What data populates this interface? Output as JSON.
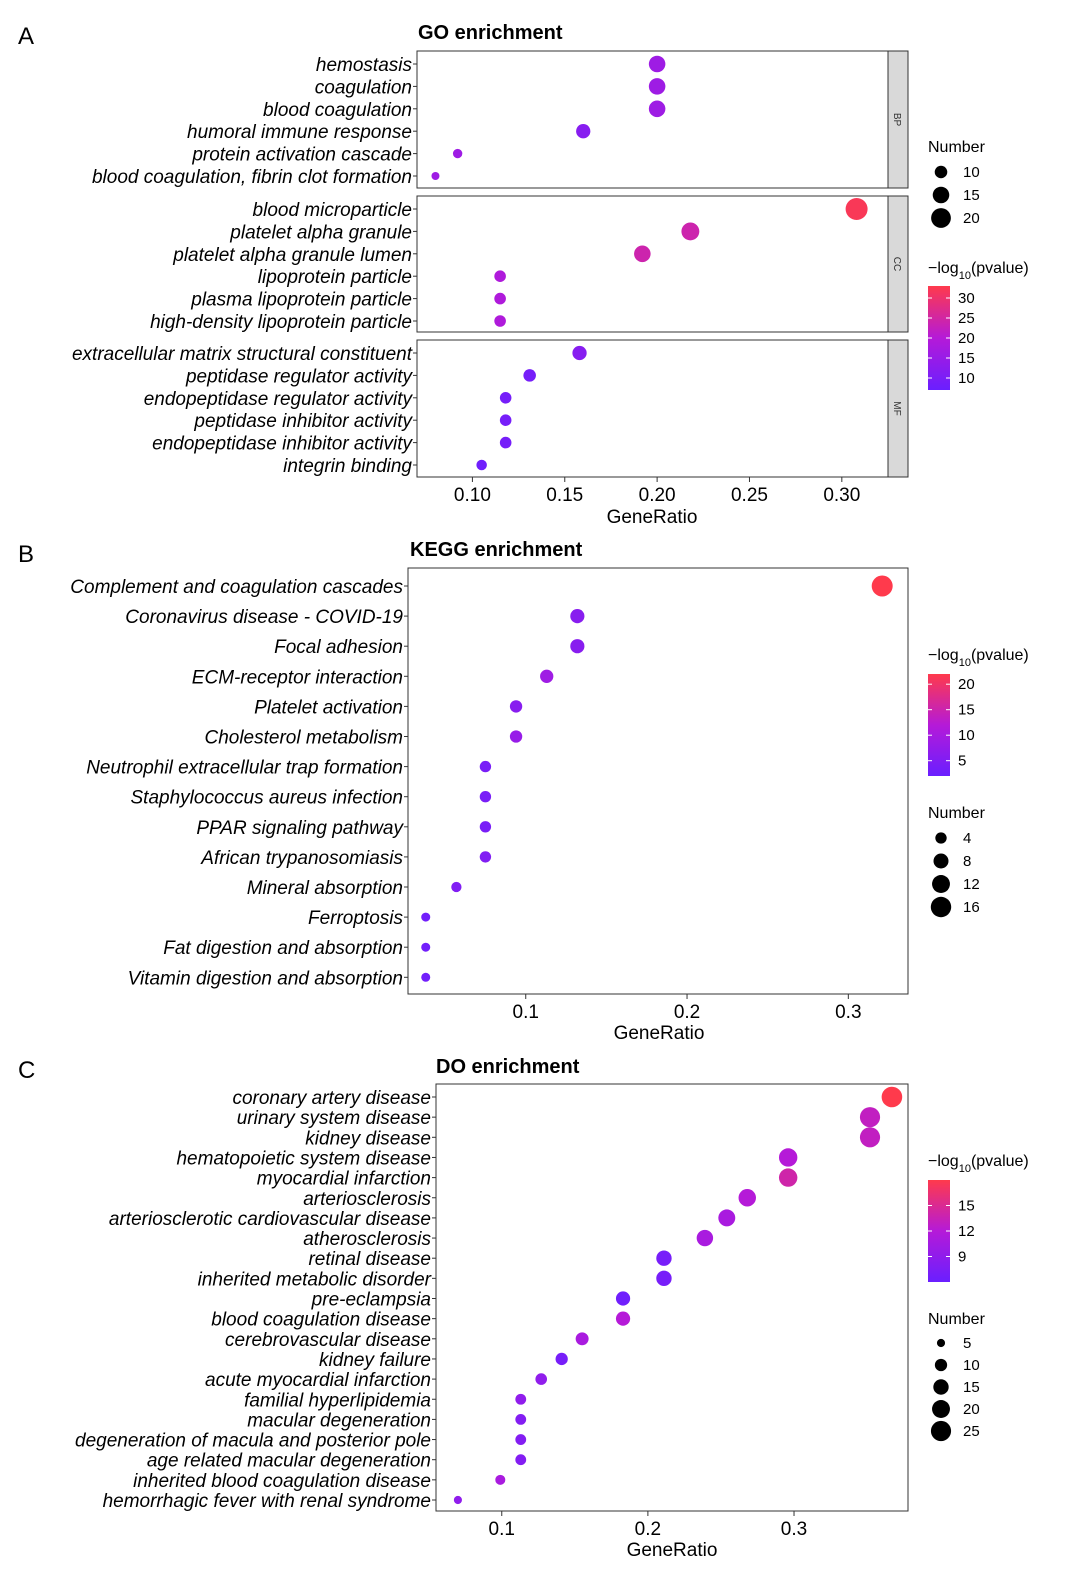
{
  "figure": {
    "panels": [
      {
        "letter": "A",
        "title": "GO enrichment",
        "xlabel": "GeneRatio"
      },
      {
        "letter": "B",
        "title": "KEGG enrichment",
        "xlabel": "GeneRatio"
      },
      {
        "letter": "C",
        "title": "DO enrichment",
        "xlabel": "GeneRatio"
      }
    ]
  },
  "colors": {
    "low": "#6a1fff",
    "mid": "#b51ad8",
    "high": "#ff3a4c"
  },
  "chart_data": [
    {
      "type": "scatter",
      "title": "GO enrichment",
      "xlabel": "GeneRatio",
      "xticks": [
        0.1,
        0.15,
        0.2,
        0.25,
        0.3
      ],
      "xlim": [
        0.07,
        0.325
      ],
      "facets": [
        {
          "name": "BP",
          "terms": [
            {
              "term": "hemostasis",
              "x": 0.2,
              "count": 15,
              "neglog10p": 16
            },
            {
              "term": "coagulation",
              "x": 0.2,
              "count": 15,
              "neglog10p": 16
            },
            {
              "term": "blood coagulation",
              "x": 0.2,
              "count": 15,
              "neglog10p": 16
            },
            {
              "term": "humoral immune response",
              "x": 0.16,
              "count": 12,
              "neglog10p": 12
            },
            {
              "term": "protein activation cascade",
              "x": 0.092,
              "count": 7,
              "neglog10p": 16
            },
            {
              "term": "blood coagulation, fibrin clot formation",
              "x": 0.08,
              "count": 6,
              "neglog10p": 16
            }
          ]
        },
        {
          "name": "CC",
          "terms": [
            {
              "term": "blood microparticle",
              "x": 0.308,
              "count": 24,
              "neglog10p": 32
            },
            {
              "term": "platelet alpha granule",
              "x": 0.218,
              "count": 17,
              "neglog10p": 24
            },
            {
              "term": "platelet alpha granule lumen",
              "x": 0.192,
              "count": 15,
              "neglog10p": 24
            },
            {
              "term": "lipoprotein particle",
              "x": 0.115,
              "count": 9,
              "neglog10p": 19
            },
            {
              "term": "plasma lipoprotein particle",
              "x": 0.115,
              "count": 9,
              "neglog10p": 19
            },
            {
              "term": "high-density lipoprotein particle",
              "x": 0.115,
              "count": 9,
              "neglog10p": 19
            }
          ]
        },
        {
          "name": "MF",
          "terms": [
            {
              "term": "extracellular matrix structural constituent",
              "x": 0.158,
              "count": 12,
              "neglog10p": 12
            },
            {
              "term": "peptidase regulator activity",
              "x": 0.131,
              "count": 10,
              "neglog10p": 9
            },
            {
              "term": "endopeptidase regulator activity",
              "x": 0.118,
              "count": 9,
              "neglog10p": 9
            },
            {
              "term": "peptidase inhibitor activity",
              "x": 0.118,
              "count": 9,
              "neglog10p": 9
            },
            {
              "term": "endopeptidase inhibitor activity",
              "x": 0.118,
              "count": 9,
              "neglog10p": 9
            },
            {
              "term": "integrin binding",
              "x": 0.105,
              "count": 8,
              "neglog10p": 8
            }
          ]
        }
      ],
      "color_legend": {
        "title_prefix": "−log",
        "title_sub": "10",
        "title_suffix": "(pvalue)",
        "ticks": [
          30,
          25,
          20,
          15,
          10
        ],
        "range": [
          7,
          33
        ]
      },
      "size_legend": {
        "title": "Number",
        "values": [
          10,
          15,
          20
        ],
        "range": [
          6,
          24
        ]
      }
    },
    {
      "type": "scatter",
      "title": "KEGG enrichment",
      "xlabel": "GeneRatio",
      "xticks": [
        0.1,
        0.2,
        0.3
      ],
      "xlim": [
        0.027,
        0.337
      ],
      "terms": [
        {
          "term": "Complement and coagulation cascades",
          "x": 0.321,
          "count": 17,
          "neglog10p": 22
        },
        {
          "term": "Coronavirus disease - COVID-19",
          "x": 0.132,
          "count": 7,
          "neglog10p": 6
        },
        {
          "term": "Focal adhesion",
          "x": 0.132,
          "count": 7,
          "neglog10p": 6
        },
        {
          "term": "ECM-receptor interaction",
          "x": 0.113,
          "count": 6,
          "neglog10p": 9
        },
        {
          "term": "Platelet activation",
          "x": 0.094,
          "count": 5,
          "neglog10p": 6
        },
        {
          "term": "Cholesterol metabolism",
          "x": 0.094,
          "count": 5,
          "neglog10p": 8
        },
        {
          "term": "Neutrophil extracellular trap formation",
          "x": 0.075,
          "count": 4,
          "neglog10p": 4
        },
        {
          "term": "Staphylococcus aureus infection",
          "x": 0.075,
          "count": 4,
          "neglog10p": 4
        },
        {
          "term": "PPAR signaling pathway",
          "x": 0.075,
          "count": 4,
          "neglog10p": 4
        },
        {
          "term": "African trypanosomiasis",
          "x": 0.075,
          "count": 4,
          "neglog10p": 5
        },
        {
          "term": "Mineral absorption",
          "x": 0.057,
          "count": 3,
          "neglog10p": 5
        },
        {
          "term": "Ferroptosis",
          "x": 0.038,
          "count": 2,
          "neglog10p": 3
        },
        {
          "term": "Fat digestion and absorption",
          "x": 0.038,
          "count": 2,
          "neglog10p": 3
        },
        {
          "term": "Vitamin digestion and absorption",
          "x": 0.038,
          "count": 2,
          "neglog10p": 3
        }
      ],
      "color_legend": {
        "title_prefix": "−log",
        "title_sub": "10",
        "title_suffix": "(pvalue)",
        "ticks": [
          20,
          15,
          10,
          5
        ],
        "range": [
          2,
          22
        ]
      },
      "size_legend": {
        "title": "Number",
        "values": [
          4,
          8,
          12,
          16
        ],
        "range": [
          2,
          17
        ]
      }
    },
    {
      "type": "scatter",
      "title": "DO enrichment",
      "xlabel": "GeneRatio",
      "xticks": [
        0.1,
        0.2,
        0.3
      ],
      "xlim": [
        0.055,
        0.378
      ],
      "terms": [
        {
          "term": "coronary artery disease",
          "x": 0.367,
          "count": 26,
          "neglog10p": 18
        },
        {
          "term": "urinary system disease",
          "x": 0.352,
          "count": 25,
          "neglog10p": 13
        },
        {
          "term": "kidney disease",
          "x": 0.352,
          "count": 25,
          "neglog10p": 13
        },
        {
          "term": "hematopoietic system disease",
          "x": 0.296,
          "count": 21,
          "neglog10p": 12
        },
        {
          "term": "myocardial infarction",
          "x": 0.296,
          "count": 21,
          "neglog10p": 14
        },
        {
          "term": "arteriosclerosis",
          "x": 0.268,
          "count": 19,
          "neglog10p": 12
        },
        {
          "term": "arteriosclerotic cardiovascular disease",
          "x": 0.254,
          "count": 18,
          "neglog10p": 11
        },
        {
          "term": "atherosclerosis",
          "x": 0.239,
          "count": 17,
          "neglog10p": 11
        },
        {
          "term": "retinal disease",
          "x": 0.211,
          "count": 15,
          "neglog10p": 7
        },
        {
          "term": "inherited metabolic disorder",
          "x": 0.211,
          "count": 15,
          "neglog10p": 7
        },
        {
          "term": "pre-eclampsia",
          "x": 0.183,
          "count": 13,
          "neglog10p": 6.5
        },
        {
          "term": "blood coagulation disease",
          "x": 0.183,
          "count": 13,
          "neglog10p": 12
        },
        {
          "term": "cerebrovascular disease",
          "x": 0.155,
          "count": 11,
          "neglog10p": 11
        },
        {
          "term": "kidney failure",
          "x": 0.141,
          "count": 10,
          "neglog10p": 7
        },
        {
          "term": "acute myocardial infarction",
          "x": 0.127,
          "count": 9,
          "neglog10p": 9
        },
        {
          "term": "familial hyperlipidemia",
          "x": 0.113,
          "count": 8,
          "neglog10p": 9
        },
        {
          "term": "macular degeneration",
          "x": 0.113,
          "count": 8,
          "neglog10p": 8
        },
        {
          "term": "degeneration of macula and posterior pole",
          "x": 0.113,
          "count": 8,
          "neglog10p": 8
        },
        {
          "term": "age related macular degeneration",
          "x": 0.113,
          "count": 8,
          "neglog10p": 8
        },
        {
          "term": "inherited blood coagulation disease",
          "x": 0.099,
          "count": 7,
          "neglog10p": 11
        },
        {
          "term": "hemorrhagic fever with renal syndrome",
          "x": 0.07,
          "count": 5,
          "neglog10p": 9
        }
      ],
      "color_legend": {
        "title_prefix": "−log",
        "title_sub": "10",
        "title_suffix": "(pvalue)",
        "ticks": [
          15,
          12,
          9
        ],
        "range": [
          6,
          18
        ]
      },
      "size_legend": {
        "title": "Number",
        "values": [
          5,
          10,
          15,
          20,
          25
        ],
        "range": [
          4,
          27
        ]
      }
    }
  ]
}
